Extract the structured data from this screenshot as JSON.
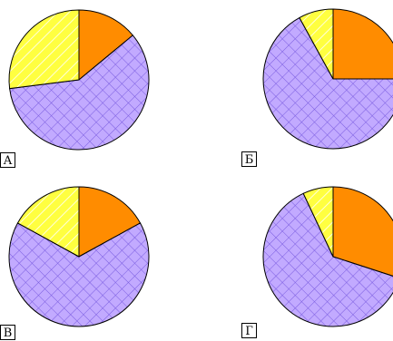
{
  "chart_data": [
    {
      "type": "pie",
      "label": "А",
      "slices": [
        {
          "fill": "orange",
          "fraction": 0.14
        },
        {
          "fill": "purple-crosshatch",
          "fraction": 0.59
        },
        {
          "fill": "yellow-hatch",
          "fraction": 0.27
        }
      ]
    },
    {
      "type": "pie",
      "label": "Б",
      "slices": [
        {
          "fill": "orange",
          "fraction": 0.25
        },
        {
          "fill": "purple-crosshatch",
          "fraction": 0.67
        },
        {
          "fill": "yellow-hatch",
          "fraction": 0.08
        }
      ]
    },
    {
      "type": "pie",
      "label": "В",
      "slices": [
        {
          "fill": "orange",
          "fraction": 0.17
        },
        {
          "fill": "purple-crosshatch",
          "fraction": 0.66
        },
        {
          "fill": "yellow-hatch",
          "fraction": 0.17
        }
      ]
    },
    {
      "type": "pie",
      "label": "Г",
      "slices": [
        {
          "fill": "orange",
          "fraction": 0.3
        },
        {
          "fill": "purple-crosshatch",
          "fraction": 0.63
        },
        {
          "fill": "yellow-hatch",
          "fraction": 0.07
        }
      ]
    }
  ],
  "colors": {
    "orange": "#ff8c00",
    "purple": "#c2aaff",
    "purple_grid": "#7a5ce0",
    "yellow": "#ffff40",
    "yellow_hatch": "#ffffff"
  }
}
